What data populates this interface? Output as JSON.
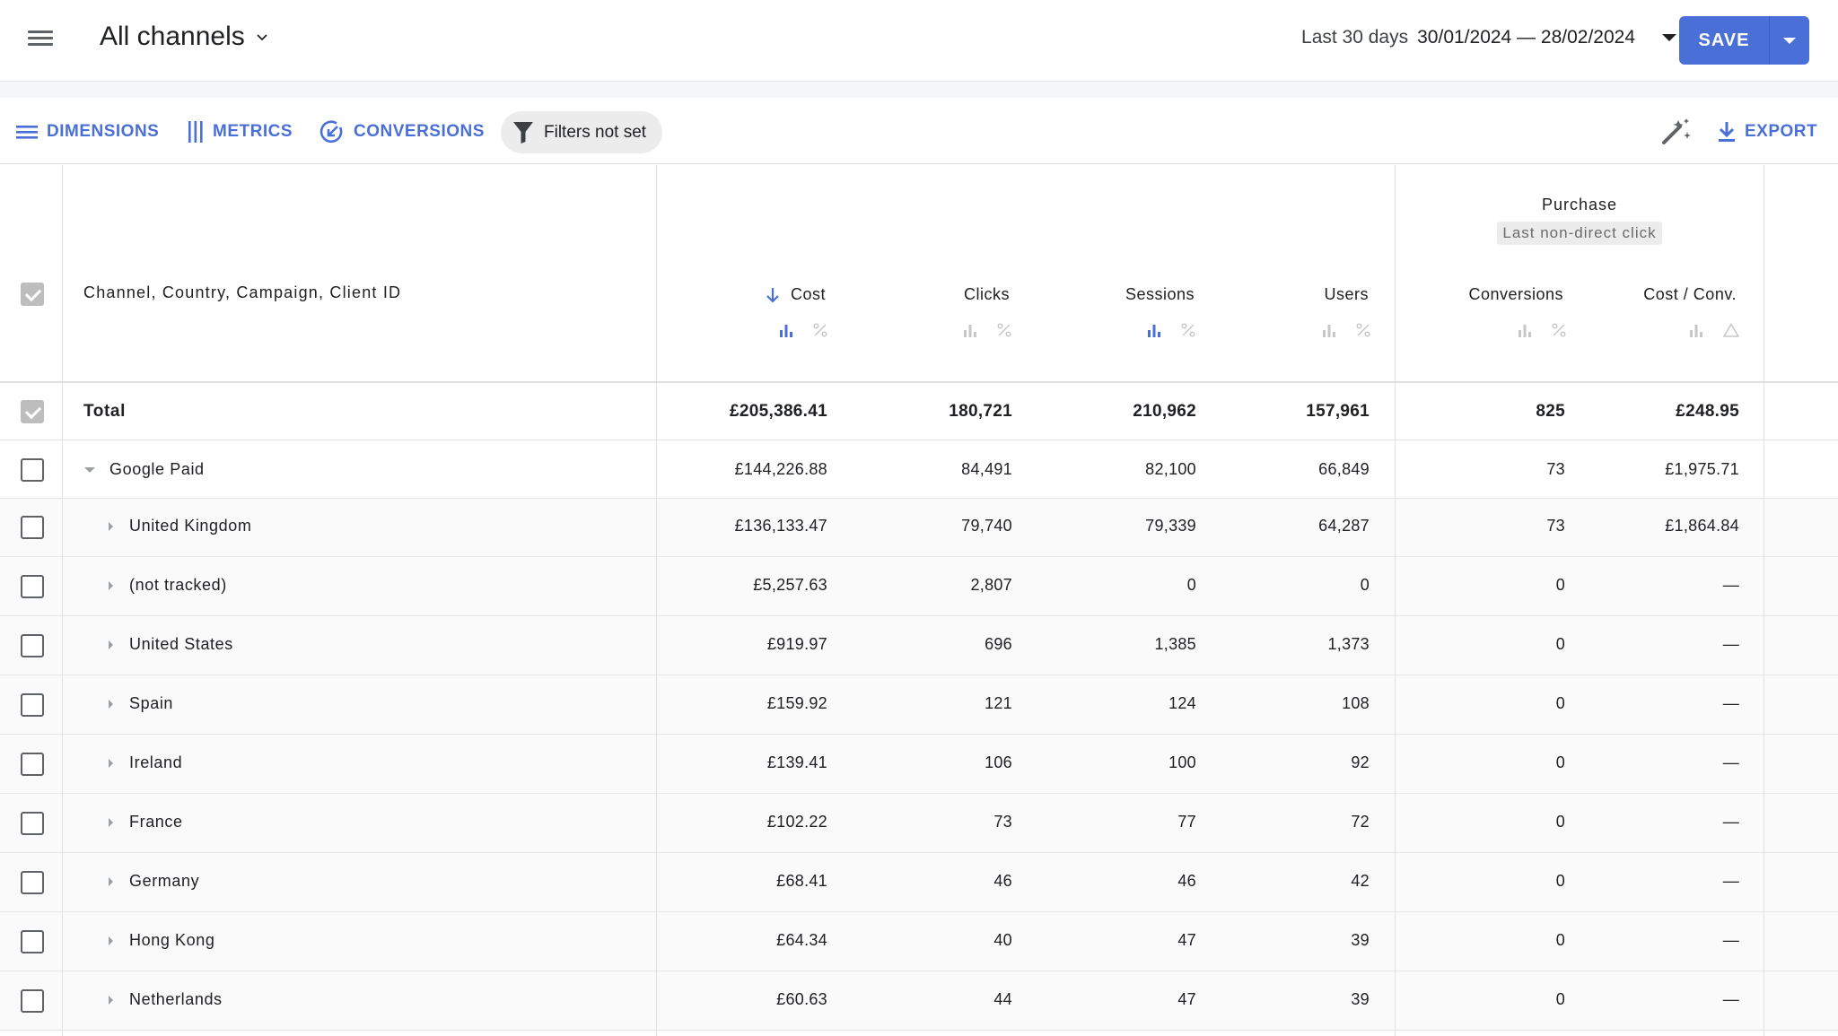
{
  "header": {
    "title": "All channels",
    "date_preset": "Last 30 days",
    "date_range": "30/01/2024 — 28/02/2024",
    "save_label": "SAVE"
  },
  "toolbar": {
    "dimensions_label": "DIMENSIONS",
    "metrics_label": "METRICS",
    "conversions_label": "CONVERSIONS",
    "filters_label": "Filters not set",
    "export_label": "EXPORT"
  },
  "colors": {
    "accent": "#4a70d8",
    "chip_bg": "#ececec",
    "muted_icon": "#c7c7c7"
  },
  "table": {
    "dimension_header": "Channel, Country, Campaign, Client ID",
    "columns": {
      "cost": "Cost",
      "clicks": "Clicks",
      "sessions": "Sessions",
      "users": "Users",
      "conversions": "Conversions",
      "cost_per_conv": "Cost / Conv."
    },
    "group": {
      "name": "Purchase",
      "attribution": "Last non-direct click"
    },
    "total": {
      "label": "Total",
      "cost": "£205,386.41",
      "clicks": "180,721",
      "sessions": "210,962",
      "users": "157,961",
      "conversions": "825",
      "cost_per_conv": "£248.95"
    },
    "rows": [
      {
        "label": "Google Paid",
        "cost": "£144,226.88",
        "clicks": "84,491",
        "sessions": "82,100",
        "users": "66,849",
        "conversions": "73",
        "cost_per_conv": "£1,975.71"
      },
      {
        "label": "United Kingdom",
        "cost": "£136,133.47",
        "clicks": "79,740",
        "sessions": "79,339",
        "users": "64,287",
        "conversions": "73",
        "cost_per_conv": "£1,864.84"
      },
      {
        "label": "(not tracked)",
        "cost": "£5,257.63",
        "clicks": "2,807",
        "sessions": "0",
        "users": "0",
        "conversions": "0",
        "cost_per_conv": "—"
      },
      {
        "label": "United States",
        "cost": "£919.97",
        "clicks": "696",
        "sessions": "1,385",
        "users": "1,373",
        "conversions": "0",
        "cost_per_conv": "—"
      },
      {
        "label": "Spain",
        "cost": "£159.92",
        "clicks": "121",
        "sessions": "124",
        "users": "108",
        "conversions": "0",
        "cost_per_conv": "—"
      },
      {
        "label": "Ireland",
        "cost": "£139.41",
        "clicks": "106",
        "sessions": "100",
        "users": "92",
        "conversions": "0",
        "cost_per_conv": "—"
      },
      {
        "label": "France",
        "cost": "£102.22",
        "clicks": "73",
        "sessions": "77",
        "users": "72",
        "conversions": "0",
        "cost_per_conv": "—"
      },
      {
        "label": "Germany",
        "cost": "£68.41",
        "clicks": "46",
        "sessions": "46",
        "users": "42",
        "conversions": "0",
        "cost_per_conv": "—"
      },
      {
        "label": "Hong Kong",
        "cost": "£64.34",
        "clicks": "40",
        "sessions": "47",
        "users": "39",
        "conversions": "0",
        "cost_per_conv": "—"
      },
      {
        "label": "Netherlands",
        "cost": "£60.63",
        "clicks": "44",
        "sessions": "47",
        "users": "39",
        "conversions": "0",
        "cost_per_conv": "—"
      }
    ]
  }
}
